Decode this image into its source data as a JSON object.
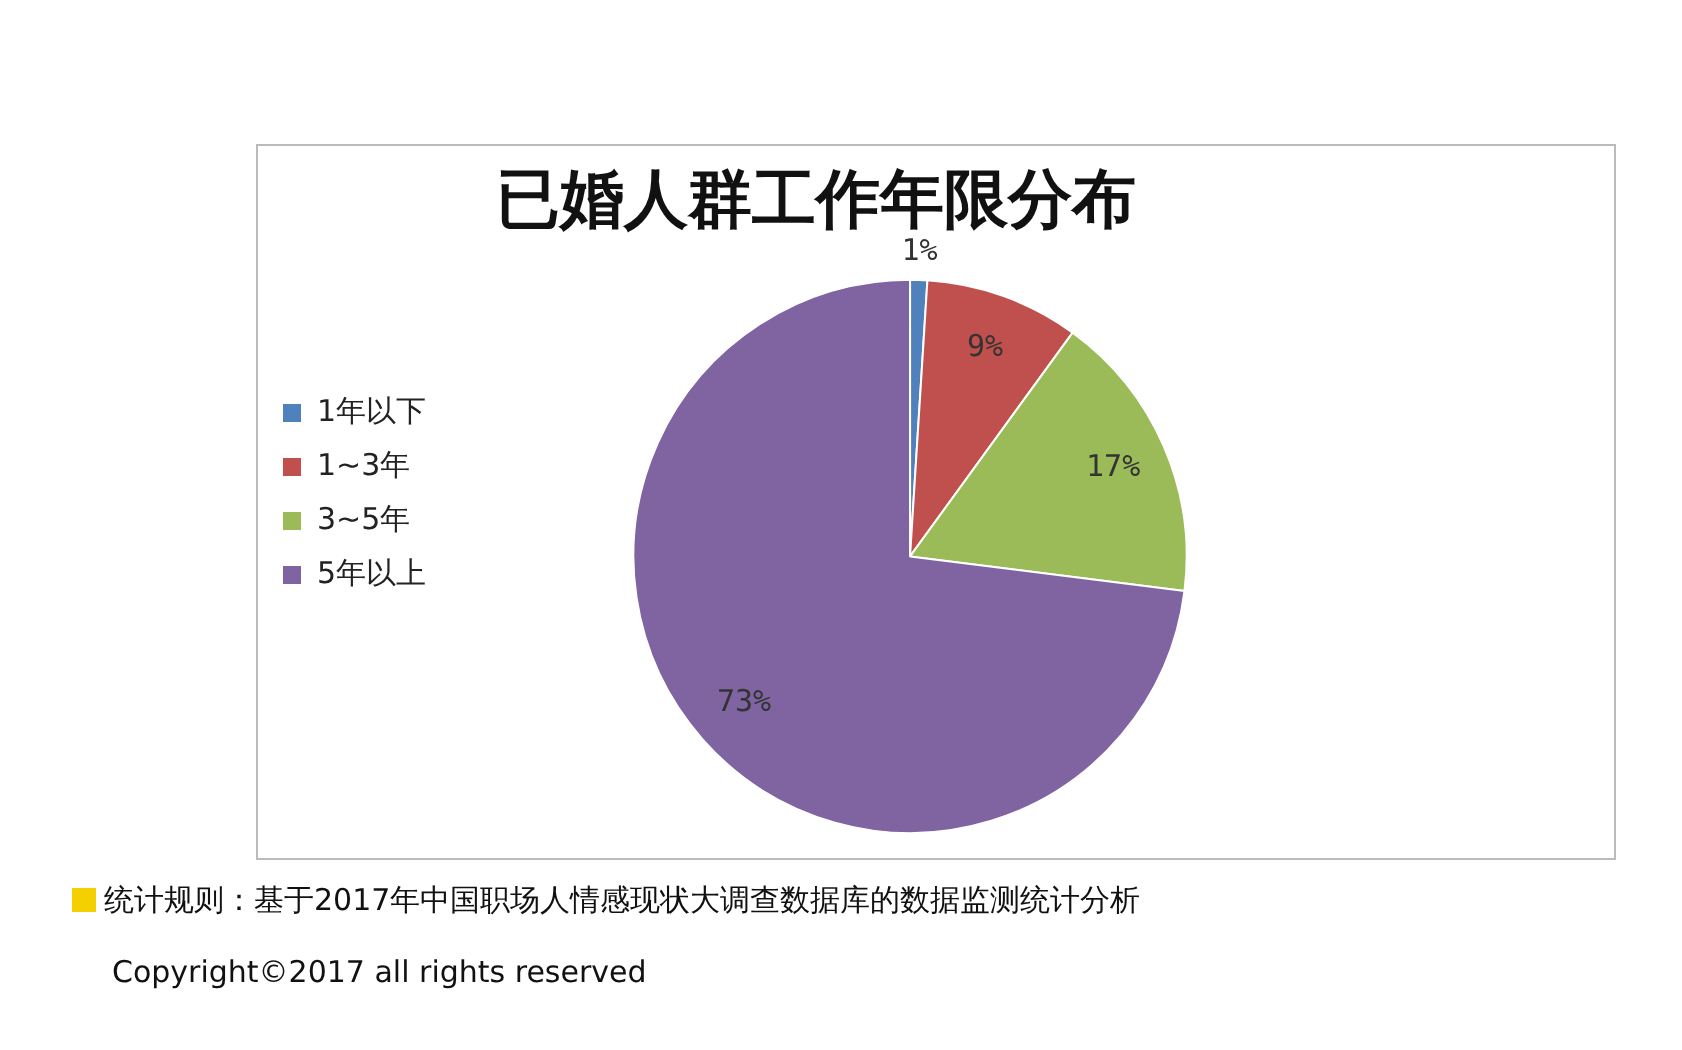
{
  "chart_data": {
    "type": "pie",
    "title": "已婚人群工作年限分布",
    "categories": [
      "1年以下",
      "1~3年",
      "3~5年",
      "5年以上"
    ],
    "values": [
      1,
      9,
      17,
      73
    ],
    "colors": [
      "#4f81bd",
      "#c0504d",
      "#9bbb59",
      "#8064a2"
    ],
    "value_labels": [
      "1%",
      "9%",
      "17%",
      "73%"
    ],
    "legend": "left",
    "annotations": [
      "统计规则：基于2017年中国职场人情感现状大调查数据库的数据监测统计分析",
      "Copyright©2017 all rights reserved"
    ]
  }
}
